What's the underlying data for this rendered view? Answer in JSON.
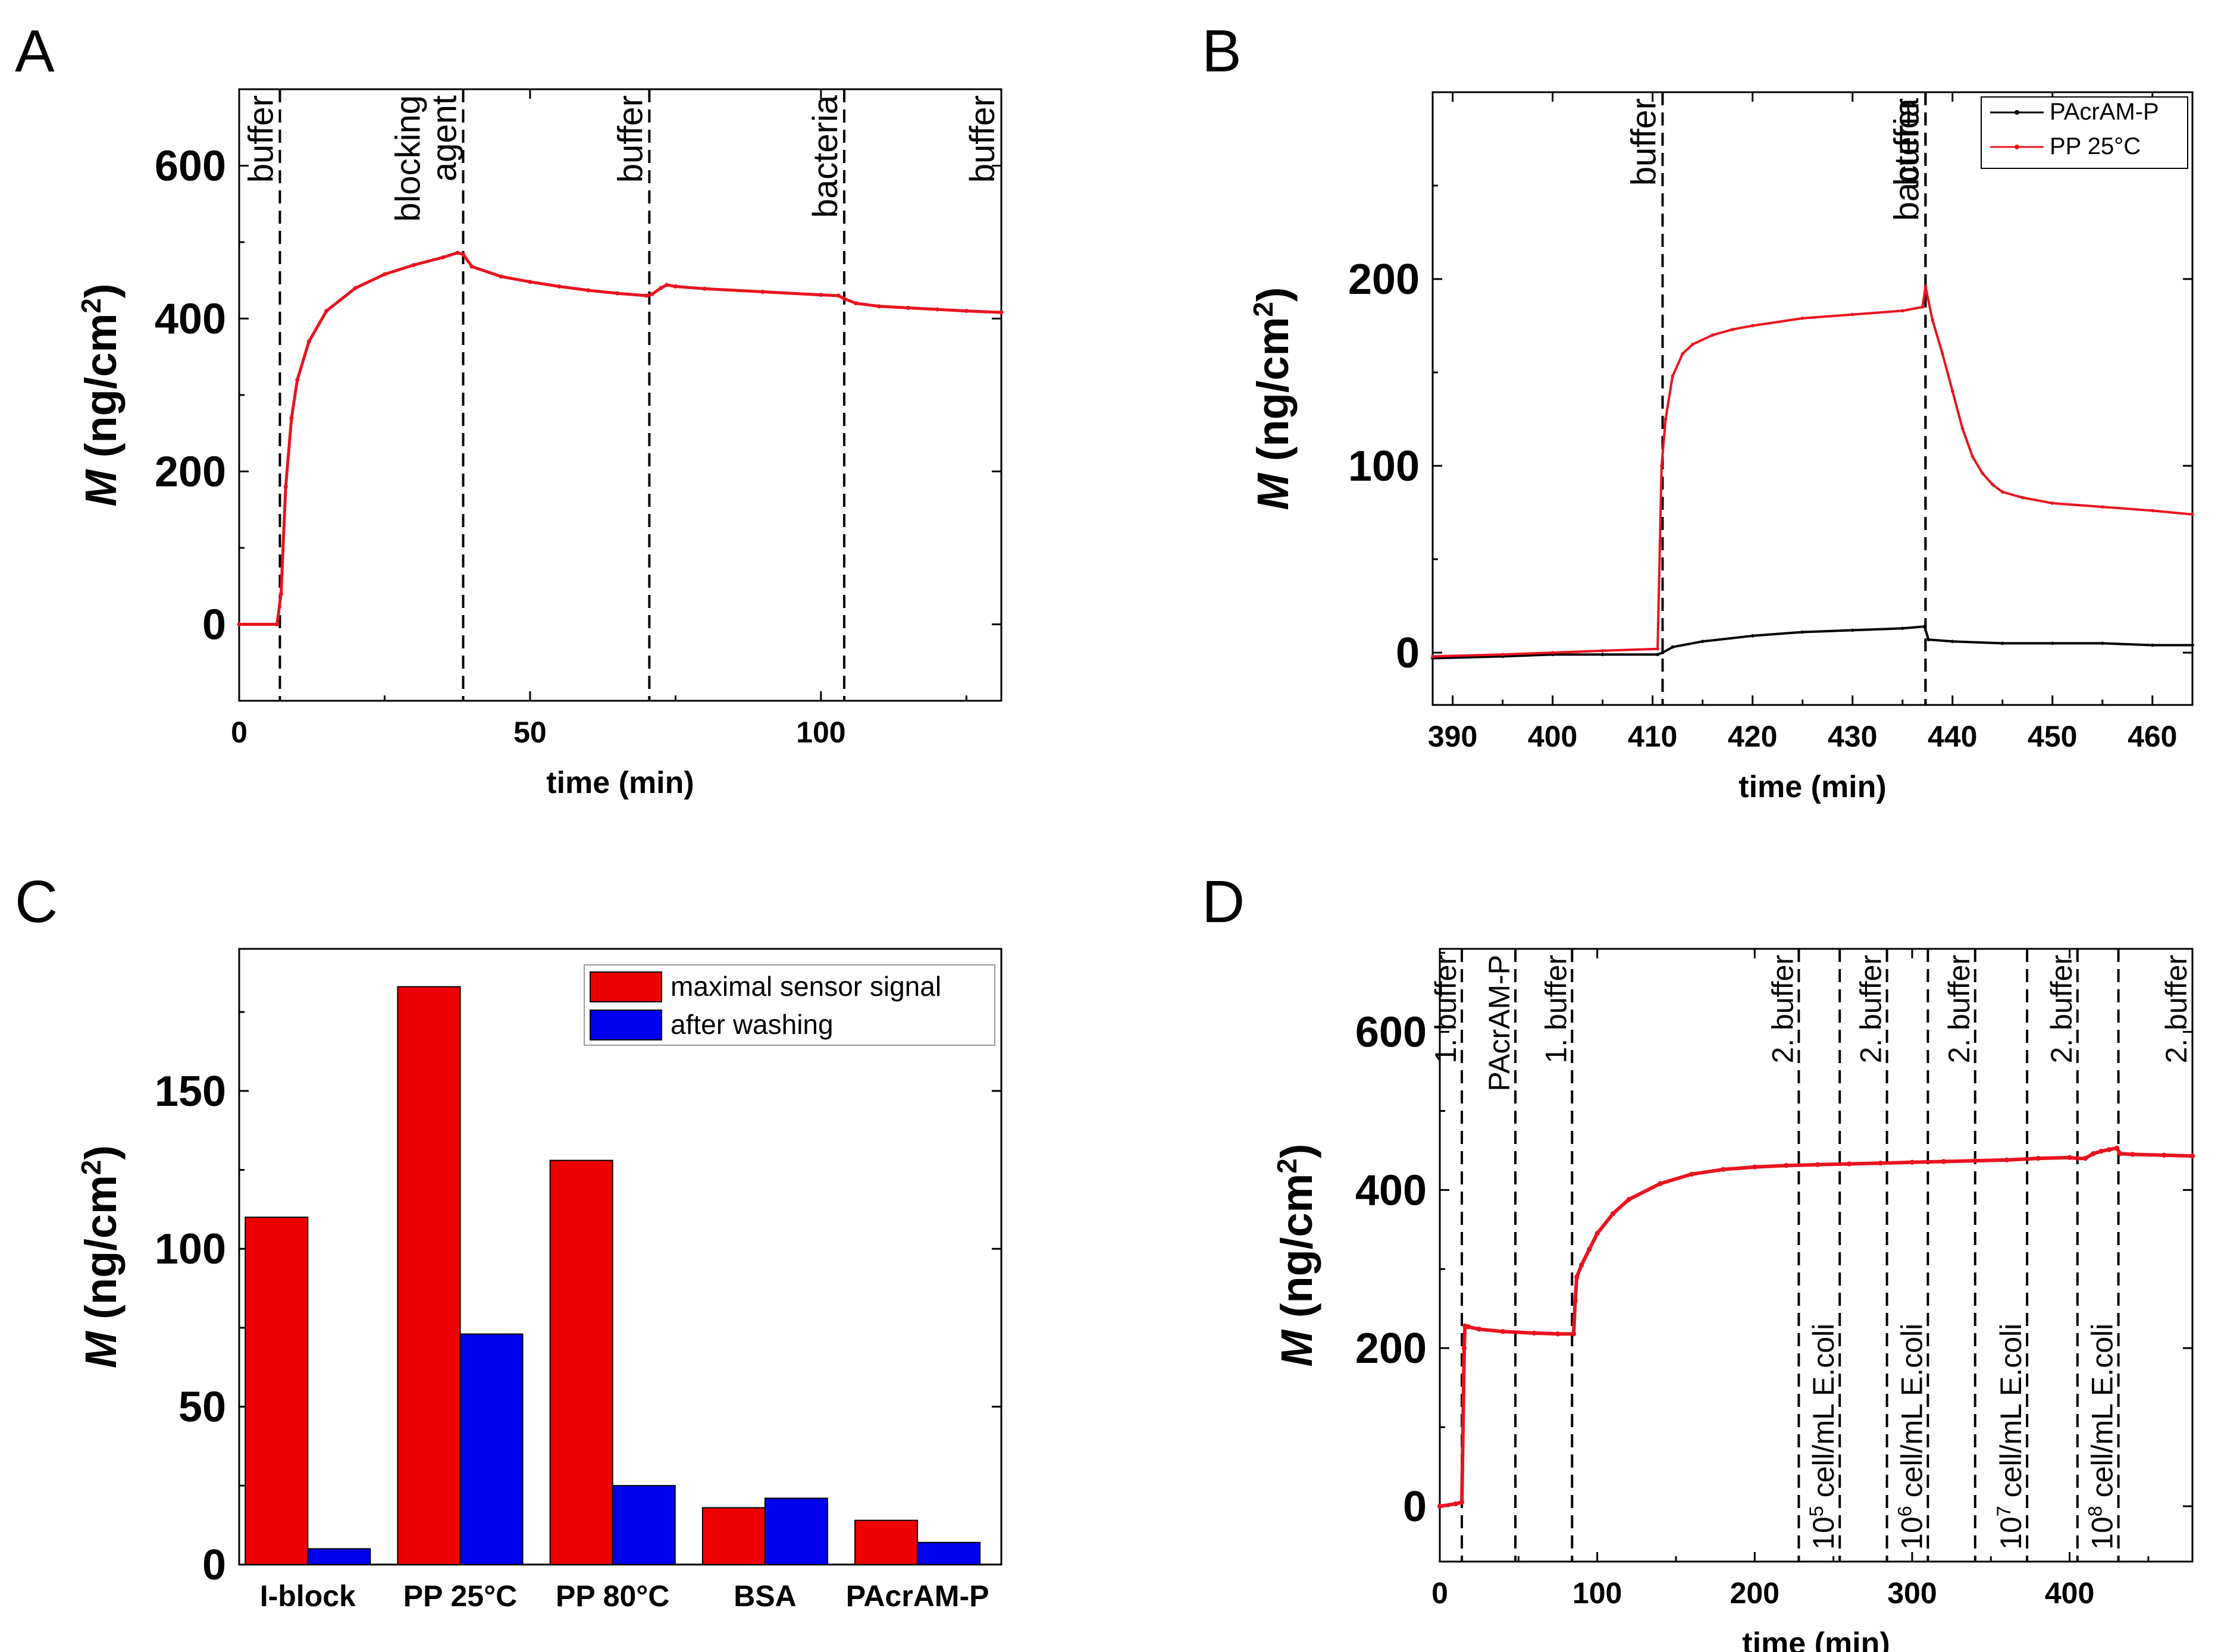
{
  "chart_data": [
    {
      "panel": "A",
      "type": "line",
      "xlabel": "time (min)",
      "ylabel": "M (ng/cm2)",
      "xlim": [
        0,
        131
      ],
      "ylim": [
        -100,
        700
      ],
      "xticks": [
        0,
        50,
        100
      ],
      "yticks": [
        0,
        200,
        400,
        600
      ],
      "series": [
        {
          "name": "signal",
          "color": "#e8141e",
          "x": [
            0,
            6.5,
            7.2,
            8,
            9,
            10,
            12,
            15,
            20,
            25,
            30,
            35,
            37.5,
            38.5,
            40,
            45,
            50,
            55,
            60,
            65,
            70,
            71,
            72.5,
            73.5,
            75,
            80,
            90,
            100,
            103,
            104,
            106,
            110,
            115,
            120,
            125,
            131
          ],
          "y": [
            0,
            0,
            40,
            180,
            270,
            320,
            370,
            410,
            440,
            458,
            470,
            480,
            486,
            484,
            468,
            455,
            448,
            442,
            437,
            433,
            430,
            432,
            440,
            444,
            442,
            439,
            435,
            431,
            430,
            426,
            420,
            416,
            414,
            412,
            410,
            408
          ]
        }
      ],
      "events": [
        {
          "x": 7,
          "label": "buffer"
        },
        {
          "x": 38.5,
          "label": "blocking agent",
          "lines": [
            "blocking",
            "agent"
          ]
        },
        {
          "x": 70.5,
          "label": "buffer"
        },
        {
          "x": 104,
          "label": "bacteria"
        },
        {
          "x": 131,
          "label": "buffer"
        }
      ]
    },
    {
      "panel": "B",
      "type": "line",
      "xlabel": "time (min)",
      "ylabel": "M (ng/cm2)",
      "xlim": [
        388,
        464
      ],
      "ylim": [
        -28,
        300
      ],
      "xticks": [
        390,
        400,
        410,
        420,
        430,
        440,
        450,
        460
      ],
      "yticks": [
        0,
        100,
        200
      ],
      "series": [
        {
          "name": "PAcrAM-P",
          "color": "#000000",
          "x": [
            388,
            395,
            400,
            405,
            410.5,
            411,
            412,
            415,
            420,
            425,
            430,
            435,
            437.2,
            437.6,
            440,
            445,
            450,
            455,
            460,
            464
          ],
          "y": [
            -3,
            -2,
            -1,
            -1,
            -1,
            0,
            3,
            6,
            9,
            11,
            12,
            13,
            14,
            7,
            6,
            5,
            5,
            5,
            4,
            4
          ]
        },
        {
          "name": "PP 25°C",
          "color": "#e8141e",
          "x": [
            388,
            395,
            400,
            405,
            410.5,
            410.9,
            411.3,
            412,
            413,
            414,
            416,
            418,
            420,
            425,
            430,
            435,
            437,
            437.3,
            438,
            439,
            440,
            441,
            442,
            443,
            444,
            445,
            447,
            450,
            455,
            460,
            464
          ],
          "y": [
            -2,
            -1,
            0,
            1,
            2,
            100,
            125,
            148,
            160,
            165,
            170,
            173,
            175,
            179,
            181,
            183,
            185,
            196,
            178,
            160,
            140,
            120,
            105,
            96,
            90,
            86,
            83,
            80,
            78,
            76,
            74
          ]
        }
      ],
      "events": [
        {
          "x": 411,
          "label": "buffer"
        },
        {
          "x": 437.3,
          "label": "bacteria"
        },
        {
          "x": 437.3,
          "label": "buffer"
        }
      ],
      "legend": {
        "placement": "top-right",
        "entries": [
          "PAcrAM-P",
          "PP 25°C"
        ]
      }
    },
    {
      "panel": "C",
      "type": "bar",
      "ylabel": "M (ng/cm2)",
      "ylim": [
        0,
        195
      ],
      "yticks": [
        0,
        50,
        100,
        150
      ],
      "categories": [
        "I-block",
        "PP 25°C",
        "PP 80°C",
        "BSA",
        "PAcrAM-P"
      ],
      "series": [
        {
          "name": "maximal sensor signal",
          "color": "#ee0000",
          "values": [
            110,
            183,
            128,
            18,
            14
          ]
        },
        {
          "name": "after washing",
          "color": "#0000ee",
          "values": [
            5,
            73,
            25,
            21,
            7
          ]
        }
      ],
      "legend": {
        "placement": "top-right",
        "entries": [
          "maximal sensor signal",
          "after washing"
        ]
      }
    },
    {
      "panel": "D",
      "type": "line",
      "xlabel": "time (min)",
      "ylabel": "M (ng/cm2)",
      "xlim": [
        0,
        478
      ],
      "ylim": [
        -70,
        705
      ],
      "xticks": [
        0,
        100,
        200,
        300,
        400
      ],
      "yticks": [
        0,
        200,
        400,
        600
      ],
      "series": [
        {
          "name": "signal",
          "color": "#e8141e",
          "x": [
            0,
            10,
            14,
            15.5,
            16,
            18,
            25,
            40,
            60,
            75,
            85,
            86,
            87,
            90,
            95,
            100,
            110,
            120,
            140,
            160,
            180,
            200,
            220,
            240,
            260,
            280,
            300,
            320,
            340,
            360,
            380,
            400,
            405,
            410,
            415,
            420,
            425,
            430,
            432,
            440,
            460,
            478
          ],
          "y": [
            0,
            3,
            5,
            200,
            228,
            227,
            224,
            221,
            219,
            218,
            218,
            260,
            290,
            305,
            325,
            345,
            370,
            388,
            408,
            420,
            426,
            429,
            431,
            432,
            433,
            434,
            435,
            436,
            437,
            438,
            440,
            441,
            440,
            440,
            446,
            449,
            451,
            453,
            446,
            445,
            444,
            443
          ]
        }
      ],
      "events": [
        {
          "x": 14,
          "label": "1. buffer"
        },
        {
          "x": 48,
          "label": "PAcrAM-P"
        },
        {
          "x": 84,
          "label": "1. buffer"
        },
        {
          "x": 228,
          "label": "2. buffer"
        },
        {
          "x": 254,
          "label": "10^5 cell/mL E.coli",
          "lines": [
            "10",
            "5",
            " cell/mL  E.coli"
          ]
        },
        {
          "x": 284,
          "label": "2. buffer"
        },
        {
          "x": 310,
          "label": "10^6 cell/mL E.coli",
          "lines": [
            "10",
            "6",
            " cell/mL  E.coli"
          ]
        },
        {
          "x": 340,
          "label": "2. buffer"
        },
        {
          "x": 373,
          "label": "10^7 cell/mL E.coli",
          "lines": [
            "10",
            "7",
            " cell/mL  E.coli"
          ]
        },
        {
          "x": 405,
          "label": "2. buffer"
        },
        {
          "x": 431,
          "label": "10^8 cell/mL E.coli",
          "lines": [
            "10",
            "8",
            " cell/mL  E.coli"
          ]
        },
        {
          "x": 478,
          "label": "2. buffer"
        }
      ]
    }
  ]
}
